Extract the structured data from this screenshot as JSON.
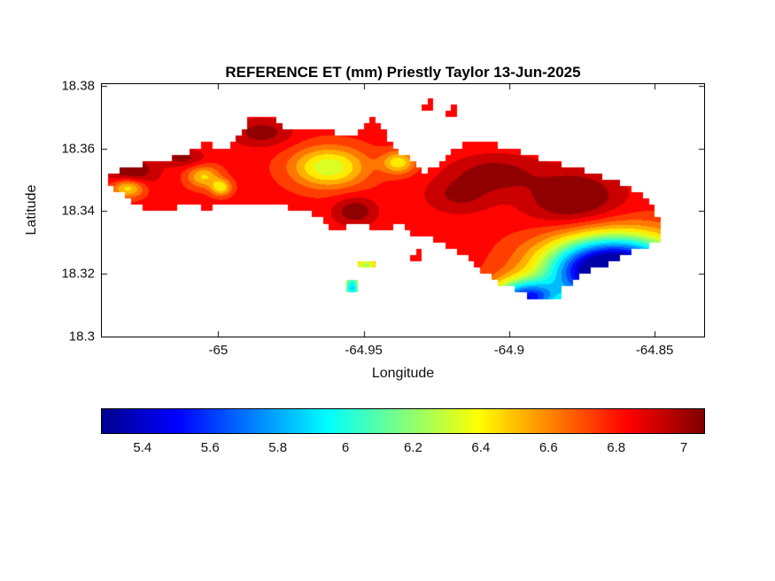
{
  "window": {
    "background": "#ffffff"
  },
  "chart_data": {
    "type": "filled-contour-map",
    "title": "REFERENCE ET (mm) Priestly Taylor 13-Jun-2025",
    "xlabel": "Longitude",
    "ylabel": "Latitude",
    "xlim": [
      -65.04,
      -64.833
    ],
    "ylim": [
      18.3,
      18.3805
    ],
    "xticks": [
      -65,
      -64.95,
      -64.9,
      -64.85
    ],
    "xtick_labels": [
      "-65",
      "-64.95",
      "-64.9",
      "-64.85"
    ],
    "yticks": [
      18.3,
      18.32,
      18.34,
      18.36,
      18.38
    ],
    "ytick_labels": [
      "18.3",
      "18.32",
      "18.34",
      "18.36",
      "18.38"
    ],
    "colorbar": {
      "orientation": "horizontal",
      "min": 5.28,
      "max": 7.06,
      "ticks": [
        5.4,
        5.6,
        5.8,
        6,
        6.2,
        6.4,
        6.6,
        6.8,
        7
      ],
      "tick_labels": [
        "5.4",
        "5.6",
        "5.8",
        "6",
        "6.2",
        "6.4",
        "6.6",
        "6.8",
        "7"
      ]
    },
    "colormap": "jet",
    "colormap_anchors": [
      [
        0.0,
        [
          0,
          0,
          143
        ]
      ],
      [
        0.125,
        [
          0,
          0,
          255
        ]
      ],
      [
        0.375,
        [
          0,
          255,
          255
        ]
      ],
      [
        0.625,
        [
          255,
          255,
          0
        ]
      ],
      [
        0.875,
        [
          255,
          0,
          0
        ]
      ],
      [
        1.0,
        [
          128,
          0,
          0
        ]
      ]
    ],
    "contour_step": 0.1,
    "grid_step_deg": 0.002,
    "field": {
      "base": 6.82,
      "features": [
        {
          "lon": -65.03,
          "lat": 18.3525,
          "amp": 0.28,
          "sx": 0.006,
          "sy": 0.0035
        },
        {
          "lon": -65.031,
          "lat": 18.3475,
          "amp": -0.45,
          "sx": 0.004,
          "sy": 0.0022
        },
        {
          "lon": -65.012,
          "lat": 18.357,
          "amp": 0.2,
          "sx": 0.005,
          "sy": 0.002
        },
        {
          "lon": -65.005,
          "lat": 18.351,
          "amp": -0.35,
          "sx": 0.004,
          "sy": 0.0025
        },
        {
          "lon": -64.999,
          "lat": 18.3475,
          "amp": -0.4,
          "sx": 0.0025,
          "sy": 0.0018
        },
        {
          "lon": -64.985,
          "lat": 18.365,
          "amp": 0.22,
          "sx": 0.007,
          "sy": 0.003
        },
        {
          "lon": -64.962,
          "lat": 18.354,
          "amp": -0.52,
          "sx": 0.009,
          "sy": 0.0045
        },
        {
          "lon": -64.938,
          "lat": 18.3555,
          "amp": -0.4,
          "sx": 0.004,
          "sy": 0.0025
        },
        {
          "lon": -64.953,
          "lat": 18.34,
          "amp": 0.25,
          "sx": 0.005,
          "sy": 0.003
        },
        {
          "lon": -64.905,
          "lat": 18.352,
          "amp": 0.22,
          "sx": 0.01,
          "sy": 0.004
        },
        {
          "lon": -64.917,
          "lat": 18.345,
          "amp": 0.18,
          "sx": 0.008,
          "sy": 0.004
        },
        {
          "lon": -64.878,
          "lat": 18.344,
          "amp": 0.32,
          "sx": 0.011,
          "sy": 0.006
        },
        {
          "lon": -64.864,
          "lat": 18.321,
          "amp": -1.9,
          "sx": 0.016,
          "sy": 0.0075
        },
        {
          "lon": -64.895,
          "lat": 18.312,
          "amp": -1.2,
          "sx": 0.008,
          "sy": 0.004
        },
        {
          "lon": -64.954,
          "lat": 18.3155,
          "amp": -0.95,
          "sx": 0.0022,
          "sy": 0.0035
        },
        {
          "lon": -64.949,
          "lat": 18.3228,
          "amp": -0.55,
          "sx": 0.003,
          "sy": 0.002
        }
      ]
    },
    "island_polygons": [
      [
        [
          -65.0385,
          18.35
        ],
        [
          -65.0345,
          18.3534
        ],
        [
          -65.0263,
          18.3548
        ],
        [
          -65.0178,
          18.3568
        ],
        [
          -65.0096,
          18.3588
        ],
        [
          -65.0059,
          18.3616
        ],
        [
          -65.0026,
          18.3613
        ],
        [
          -64.9998,
          18.3593
        ],
        [
          -64.9953,
          18.361
        ],
        [
          -64.9916,
          18.365
        ],
        [
          -64.9898,
          18.3695
        ],
        [
          -64.9837,
          18.3706
        ],
        [
          -64.9785,
          18.3681
        ],
        [
          -64.9746,
          18.3652
        ],
        [
          -64.9703,
          18.3667
        ],
        [
          -64.9648,
          18.3655
        ],
        [
          -64.9578,
          18.3647
        ],
        [
          -64.9517,
          18.3647
        ],
        [
          -64.9493,
          18.3681
        ],
        [
          -64.9459,
          18.3698
        ],
        [
          -64.9438,
          18.3667
        ],
        [
          -64.9414,
          18.363
        ],
        [
          -64.9383,
          18.3596
        ],
        [
          -64.9347,
          18.3571
        ],
        [
          -64.9319,
          18.3537
        ],
        [
          -64.9283,
          18.3523
        ],
        [
          -64.9246,
          18.3548
        ],
        [
          -64.9213,
          18.3585
        ],
        [
          -64.9176,
          18.3602
        ],
        [
          -64.9131,
          18.3619
        ],
        [
          -64.9085,
          18.3621
        ],
        [
          -64.9036,
          18.361
        ],
        [
          -64.8978,
          18.3593
        ],
        [
          -64.8908,
          18.3573
        ],
        [
          -64.8832,
          18.3554
        ],
        [
          -64.8756,
          18.3534
        ],
        [
          -64.868,
          18.3511
        ],
        [
          -64.861,
          18.3486
        ],
        [
          -64.8552,
          18.3455
        ],
        [
          -64.8506,
          18.3415
        ],
        [
          -64.8479,
          18.337
        ],
        [
          -64.8473,
          18.333
        ],
        [
          -64.8494,
          18.3299
        ],
        [
          -64.8537,
          18.328
        ],
        [
          -64.8586,
          18.3266
        ],
        [
          -64.8634,
          18.3243
        ],
        [
          -64.8686,
          18.3223
        ],
        [
          -64.8738,
          18.3203
        ],
        [
          -64.8777,
          18.3181
        ],
        [
          -64.8811,
          18.315
        ],
        [
          -64.8838,
          18.3121
        ],
        [
          -64.8881,
          18.311
        ],
        [
          -64.8924,
          18.3121
        ],
        [
          -64.8966,
          18.3141
        ],
        [
          -64.9009,
          18.3158
        ],
        [
          -64.9048,
          18.3178
        ],
        [
          -64.9085,
          18.3201
        ],
        [
          -64.9118,
          18.3223
        ],
        [
          -64.9143,
          18.3248
        ],
        [
          -64.9176,
          18.3268
        ],
        [
          -64.9213,
          18.3285
        ],
        [
          -64.9246,
          18.3308
        ],
        [
          -64.927,
          18.3319
        ],
        [
          -64.9297,
          18.3308
        ],
        [
          -64.9328,
          18.3319
        ],
        [
          -64.9353,
          18.3342
        ],
        [
          -64.938,
          18.3356
        ],
        [
          -64.9414,
          18.3345
        ],
        [
          -64.9447,
          18.3333
        ],
        [
          -64.9481,
          18.3347
        ],
        [
          -64.9514,
          18.3367
        ],
        [
          -64.9548,
          18.3364
        ],
        [
          -64.9572,
          18.3342
        ],
        [
          -64.9599,
          18.333
        ],
        [
          -64.9621,
          18.3356
        ],
        [
          -64.9648,
          18.3376
        ],
        [
          -64.9685,
          18.3395
        ],
        [
          -64.9721,
          18.3407
        ],
        [
          -64.9761,
          18.341
        ],
        [
          -64.98,
          18.3415
        ],
        [
          -64.9837,
          18.3429
        ],
        [
          -64.9873,
          18.3424
        ],
        [
          -64.991,
          18.3418
        ],
        [
          -64.995,
          18.3412
        ],
        [
          -64.9989,
          18.3415
        ],
        [
          -65.0029,
          18.3407
        ],
        [
          -65.0068,
          18.3412
        ],
        [
          -65.0108,
          18.3415
        ],
        [
          -65.0147,
          18.3407
        ],
        [
          -65.0184,
          18.3395
        ],
        [
          -65.0214,
          18.3407
        ],
        [
          -65.0245,
          18.3401
        ],
        [
          -65.0275,
          18.3415
        ],
        [
          -65.0306,
          18.3432
        ],
        [
          -65.0336,
          18.3458
        ],
        [
          -65.0363,
          18.348
        ]
      ],
      [
        [
          -64.9307,
          18.3732
        ],
        [
          -64.9271,
          18.3751
        ],
        [
          -64.9246,
          18.3737
        ],
        [
          -64.9271,
          18.3715
        ]
      ],
      [
        [
          -64.9228,
          18.3723
        ],
        [
          -64.9191,
          18.3737
        ],
        [
          -64.917,
          18.372
        ],
        [
          -64.9201,
          18.3703
        ]
      ],
      [
        [
          -64.9523,
          18.324
        ],
        [
          -64.9475,
          18.3248
        ],
        [
          -64.9459,
          18.3223
        ],
        [
          -64.9505,
          18.3206
        ]
      ],
      [
        [
          -64.956,
          18.3184
        ],
        [
          -64.953,
          18.3189
        ],
        [
          -64.9521,
          18.3158
        ],
        [
          -64.9536,
          18.3124
        ],
        [
          -64.956,
          18.3144
        ]
      ],
      [
        [
          -64.9584,
          18.3088
        ],
        [
          -64.9548,
          18.309
        ],
        [
          -64.9548,
          18.3076
        ],
        [
          -64.9584,
          18.3073
        ]
      ],
      [
        [
          -64.9338,
          18.3266
        ],
        [
          -64.9307,
          18.3271
        ],
        [
          -64.9301,
          18.3246
        ],
        [
          -64.9331,
          18.324
        ]
      ]
    ]
  }
}
